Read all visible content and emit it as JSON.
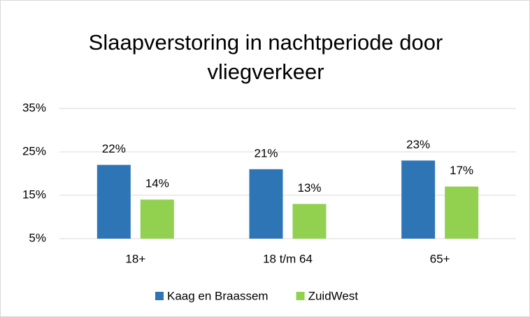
{
  "chart_data": {
    "type": "bar",
    "title": "Slaapverstoring in nachtperiode door vliegverkeer",
    "categories": [
      "18+",
      "18 t/m 64",
      "65+"
    ],
    "series": [
      {
        "name": "Kaag en Braassem",
        "color": "#2e75b6",
        "values": [
          22,
          21,
          23
        ],
        "value_labels": [
          "22%",
          "21%",
          "23%"
        ]
      },
      {
        "name": "ZuidWest",
        "color": "#92d050",
        "values": [
          14,
          13,
          17
        ],
        "value_labels": [
          "14%",
          "13%",
          "17%"
        ]
      }
    ],
    "ylim": [
      5,
      35
    ],
    "yticks": [
      {
        "value": 5,
        "label": "5%"
      },
      {
        "value": 15,
        "label": "15%"
      },
      {
        "value": 25,
        "label": "25%"
      },
      {
        "value": 35,
        "label": "35%"
      }
    ],
    "grid": true,
    "legend": "bottom"
  }
}
